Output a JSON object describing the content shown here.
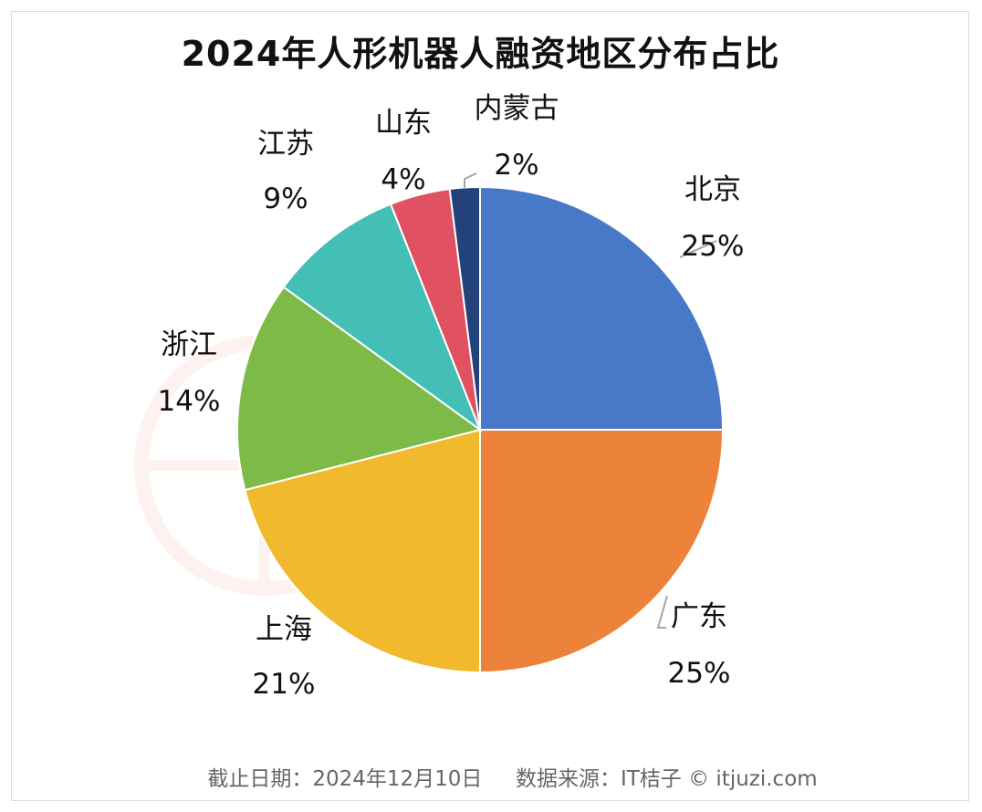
{
  "chart_data": {
    "type": "pie",
    "title": "2024年人形机器人融资地区分布占比",
    "slices": [
      {
        "label": "北京",
        "value": 25,
        "display": "25%",
        "color": "#4878c8"
      },
      {
        "label": "广东",
        "value": 25,
        "display": "25%",
        "color": "#ed823a"
      },
      {
        "label": "上海",
        "value": 21,
        "display": "21%",
        "color": "#f0b92e"
      },
      {
        "label": "浙江",
        "value": 14,
        "display": "14%",
        "color": "#7dba47"
      },
      {
        "label": "江苏",
        "value": 9,
        "display": "9%",
        "color": "#43bfb6"
      },
      {
        "label": "山东",
        "value": 4,
        "display": "4%",
        "color": "#e05262"
      },
      {
        "label": "内蒙古",
        "value": 2,
        "display": "2%",
        "color": "#24427a"
      }
    ],
    "legend": "none",
    "start": "12 o'clock, clockwise"
  },
  "footer": {
    "date": "截止日期：2024年12月10日",
    "source": "数据来源：IT桔子 © itjuzi.com"
  }
}
